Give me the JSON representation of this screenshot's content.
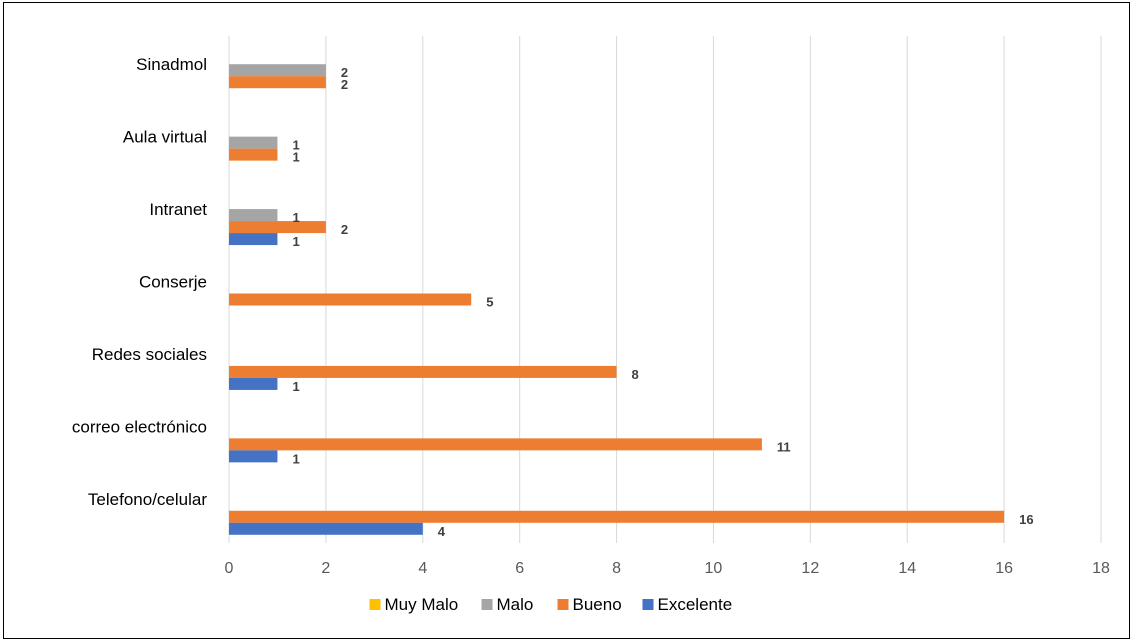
{
  "chart_data": {
    "type": "bar",
    "orientation": "horizontal",
    "categories": [
      "Telefono/celular",
      "correo electrónico",
      "Redes sociales",
      "Conserje",
      "Intranet",
      "Aula virtual",
      "Sinadmol"
    ],
    "series": [
      {
        "name": "Muy Malo",
        "color": "#FFC000",
        "values": [
          0,
          0,
          0,
          0,
          0,
          0,
          0
        ]
      },
      {
        "name": "Malo",
        "color": "#A5A5A5",
        "values": [
          0,
          0,
          0,
          0,
          1,
          1,
          2
        ]
      },
      {
        "name": "Bueno",
        "color": "#ED7D31",
        "values": [
          16,
          11,
          8,
          5,
          2,
          1,
          2
        ]
      },
      {
        "name": "Excelente",
        "color": "#4472C4",
        "values": [
          4,
          1,
          1,
          0,
          1,
          0,
          0
        ]
      }
    ],
    "xlim": [
      0,
      18
    ],
    "xticks": [
      0,
      2,
      4,
      6,
      8,
      10,
      12,
      14,
      16,
      18
    ],
    "grid": true,
    "legend_position": "bottom",
    "title": "",
    "xlabel": "",
    "ylabel": ""
  }
}
